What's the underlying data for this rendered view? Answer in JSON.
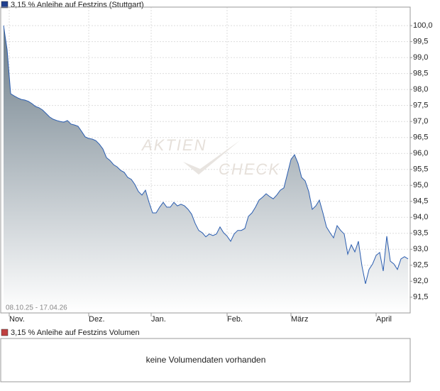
{
  "chart_data": {
    "type": "area",
    "title": "3,15 % Anleihe auf Festzins (Stuttgart)",
    "date_range": "08.10.25 - 17.04.26",
    "watermark": {
      "line1": "AKTIEN",
      "line2": "CHECK"
    },
    "color": "#2a5db0",
    "fill_top": "#6b7c88",
    "grid": true,
    "values": [
      100.0,
      99.25,
      97.87,
      97.8,
      97.74,
      97.69,
      97.67,
      97.63,
      97.56,
      97.47,
      97.43,
      97.36,
      97.25,
      97.14,
      97.07,
      97.03,
      97.0,
      96.98,
      97.03,
      96.92,
      96.89,
      96.85,
      96.69,
      96.52,
      96.47,
      96.45,
      96.4,
      96.29,
      96.14,
      95.87,
      95.78,
      95.65,
      95.58,
      95.47,
      95.41,
      95.25,
      95.19,
      95.03,
      94.81,
      94.7,
      94.85,
      94.47,
      94.14,
      94.14,
      94.32,
      94.47,
      94.32,
      94.32,
      94.47,
      94.36,
      94.41,
      94.36,
      94.25,
      94.1,
      93.81,
      93.59,
      93.52,
      93.39,
      93.48,
      93.43,
      93.48,
      93.7,
      93.52,
      93.41,
      93.25,
      93.48,
      93.59,
      93.59,
      93.65,
      94.03,
      94.14,
      94.32,
      94.54,
      94.63,
      94.74,
      94.65,
      94.58,
      94.7,
      94.85,
      94.92,
      95.36,
      95.81,
      95.96,
      95.69,
      95.25,
      95.14,
      94.81,
      94.25,
      94.36,
      94.54,
      94.14,
      93.7,
      93.52,
      93.36,
      93.74,
      93.59,
      93.48,
      92.85,
      93.14,
      92.92,
      93.25,
      92.48,
      91.92,
      92.37,
      92.54,
      92.81,
      92.9,
      92.32,
      93.41,
      92.63,
      92.54,
      92.37,
      92.7,
      92.77,
      92.7
    ],
    "xlim": [
      0,
      114.6
    ],
    "xticks": [
      {
        "value": 1.6,
        "label": "Nov."
      },
      {
        "value": 24,
        "label": "Dez."
      },
      {
        "value": 41.6,
        "label": "Jan."
      },
      {
        "value": 63,
        "label": "Feb."
      },
      {
        "value": 81,
        "label": "März"
      },
      {
        "value": 105,
        "label": "April"
      }
    ],
    "ylim": [
      91.03,
      100.58
    ],
    "yticks": [
      {
        "value": 91.5,
        "label": "91,5"
      },
      {
        "value": 92,
        "label": "92,0"
      },
      {
        "value": 92.5,
        "label": "92,5"
      },
      {
        "value": 93,
        "label": "93,0"
      },
      {
        "value": 93.5,
        "label": "93,5"
      },
      {
        "value": 94,
        "label": "94,0"
      },
      {
        "value": 94.5,
        "label": "94,5"
      },
      {
        "value": 95,
        "label": "95,0"
      },
      {
        "value": 95.5,
        "label": "95,5"
      },
      {
        "value": 96,
        "label": "96,0"
      },
      {
        "value": 96.5,
        "label": "96,5"
      },
      {
        "value": 97,
        "label": "97,0"
      },
      {
        "value": 97.5,
        "label": "97,5"
      },
      {
        "value": 98,
        "label": "98,0"
      },
      {
        "value": 98.5,
        "label": "98,5"
      },
      {
        "value": 99,
        "label": "99,0"
      },
      {
        "value": 99.5,
        "label": "99,5"
      },
      {
        "value": 100,
        "label": "100,0"
      }
    ]
  },
  "volume_panel": {
    "title": "3,15 % Anleihe auf Festzins Volumen",
    "message": "keine Volumendaten vorhanden"
  }
}
